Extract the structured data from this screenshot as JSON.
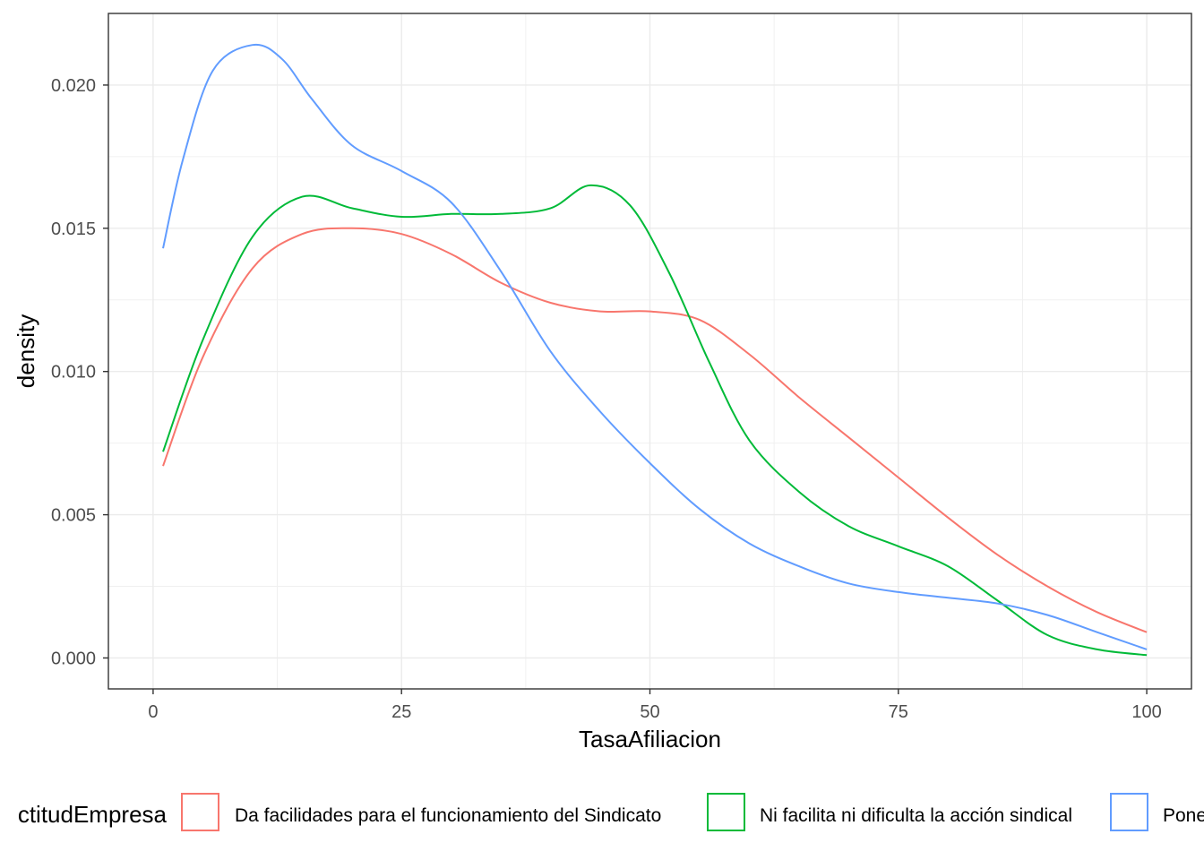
{
  "chart_data": {
    "type": "line",
    "xlabel": "TasaAfiliacion",
    "ylabel": "density",
    "xlim": [
      -4.5,
      104.5
    ],
    "ylim": [
      -0.00108,
      0.0225
    ],
    "x_ticks": [
      0,
      25,
      50,
      75,
      100
    ],
    "x_tick_labels": [
      "0",
      "25",
      "50",
      "75",
      "100"
    ],
    "y_ticks": [
      0.0,
      0.005,
      0.01,
      0.015,
      0.02
    ],
    "y_tick_labels": [
      "0.000",
      "0.005",
      "0.010",
      "0.015",
      "0.020"
    ],
    "grid": true,
    "legend": {
      "position": "bottom",
      "title": "ActitudEmpresa",
      "title_visible": "ctitudEmpresa",
      "labels": [
        "Da facilidades para el funcionamiento del Sindicato",
        "Ni facilita ni dificulta la acción sindical",
        "Pone"
      ]
    },
    "series": [
      {
        "name": "Da facilidades para el funcionamiento del Sindicato",
        "color": "#F8766D",
        "points": [
          [
            1,
            0.0067
          ],
          [
            5,
            0.0105
          ],
          [
            10,
            0.0136
          ],
          [
            15,
            0.0148
          ],
          [
            20,
            0.015
          ],
          [
            25,
            0.0148
          ],
          [
            30,
            0.0141
          ],
          [
            35,
            0.0131
          ],
          [
            40,
            0.0124
          ],
          [
            45,
            0.0121
          ],
          [
            50,
            0.0121
          ],
          [
            55,
            0.0118
          ],
          [
            60,
            0.0106
          ],
          [
            65,
            0.0091
          ],
          [
            70,
            0.0077
          ],
          [
            75,
            0.0063
          ],
          [
            80,
            0.0049
          ],
          [
            85,
            0.0036
          ],
          [
            90,
            0.0025
          ],
          [
            95,
            0.0016
          ],
          [
            100,
            0.0009
          ]
        ]
      },
      {
        "name": "Ni facilita ni dificulta la acción sindical",
        "color": "#00BA38",
        "points": [
          [
            1,
            0.0072
          ],
          [
            5,
            0.0111
          ],
          [
            10,
            0.0147
          ],
          [
            15,
            0.0161
          ],
          [
            20,
            0.0157
          ],
          [
            25,
            0.0154
          ],
          [
            30,
            0.0155
          ],
          [
            35,
            0.0155
          ],
          [
            40,
            0.0157
          ],
          [
            44,
            0.0165
          ],
          [
            48,
            0.0158
          ],
          [
            52,
            0.0134
          ],
          [
            56,
            0.0103
          ],
          [
            60,
            0.0076
          ],
          [
            65,
            0.0058
          ],
          [
            70,
            0.0046
          ],
          [
            75,
            0.0039
          ],
          [
            80,
            0.0032
          ],
          [
            85,
            0.002
          ],
          [
            90,
            0.0008
          ],
          [
            95,
            0.0003
          ],
          [
            100,
            0.0001
          ]
        ]
      },
      {
        "name": "Pone",
        "color": "#619CFF",
        "points": [
          [
            1,
            0.0143
          ],
          [
            3,
            0.0174
          ],
          [
            6,
            0.0205
          ],
          [
            10,
            0.0214
          ],
          [
            13,
            0.0209
          ],
          [
            16,
            0.0195
          ],
          [
            20,
            0.0179
          ],
          [
            25,
            0.017
          ],
          [
            30,
            0.0159
          ],
          [
            35,
            0.0135
          ],
          [
            40,
            0.0107
          ],
          [
            45,
            0.0086
          ],
          [
            50,
            0.0068
          ],
          [
            55,
            0.0052
          ],
          [
            60,
            0.004
          ],
          [
            65,
            0.0032
          ],
          [
            70,
            0.0026
          ],
          [
            75,
            0.0023
          ],
          [
            80,
            0.0021
          ],
          [
            85,
            0.0019
          ],
          [
            90,
            0.0015
          ],
          [
            95,
            0.0009
          ],
          [
            100,
            0.0003
          ]
        ]
      }
    ]
  }
}
